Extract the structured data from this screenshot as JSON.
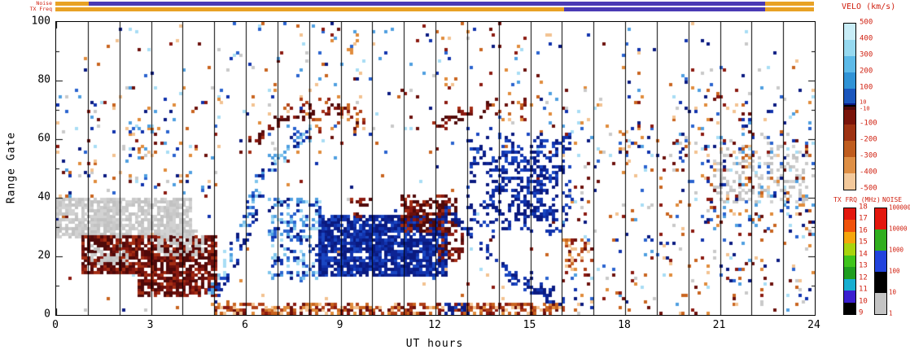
{
  "chart_data": {
    "type": "heatmap",
    "description": "Radar range-time plot of Doppler velocity backscatter (SuperDARN style RTI plot)",
    "axes": {
      "xlabel": "UT hours",
      "ylabel": "Range Gate",
      "x_range": [
        0,
        24
      ],
      "y_range": [
        0,
        100
      ],
      "x_major": [
        0,
        3,
        6,
        9,
        12,
        15,
        18,
        21,
        24
      ],
      "x_minor_step": 1,
      "y_major": [
        0,
        20,
        40,
        60,
        80,
        100
      ],
      "y_minor_step": 10,
      "grid": "vertical-hour-lines"
    },
    "strips": {
      "noise_label": "Noise",
      "tx_label": "TX Freq",
      "noise_segments": [
        {
          "from": 0,
          "to": 1.05,
          "color": "#e8a225"
        },
        {
          "from": 1.05,
          "to": 22.45,
          "color": "#4a3ab4"
        },
        {
          "from": 22.45,
          "to": 24,
          "color": "#e8a225"
        }
      ],
      "tx_segments": [
        {
          "from": 0,
          "to": 16.1,
          "color": "#e8a225"
        },
        {
          "from": 16.1,
          "to": 22.45,
          "color": "#4a3ab4"
        },
        {
          "from": 22.45,
          "to": 24,
          "color": "#e8a225"
        }
      ]
    },
    "colorbars": {
      "velo": {
        "title": "VELO (km/s)",
        "range": [
          -500,
          500
        ],
        "positive_colors": [
          "#c8edf7",
          "#96d9f0",
          "#5cbae8",
          "#2f93d6",
          "#1a56bd",
          "#0a1a86"
        ],
        "negative_colors": [
          "#500a0a",
          "#7a140a",
          "#9e3212",
          "#bf5c1e",
          "#de8f45",
          "#f3c99b"
        ],
        "tick_labels": [
          "500",
          "400",
          "300",
          "200",
          "100",
          "10",
          "-10",
          "-100",
          "-200",
          "-300",
          "-400",
          "-500"
        ]
      },
      "tx_freq": {
        "title": "TX FRQ (MHz)",
        "tick_labels": [
          "18",
          "17",
          "16",
          "15",
          "14",
          "13",
          "12",
          "11",
          "10",
          "9"
        ],
        "colors": [
          "#e3170d",
          "#f0520b",
          "#f5a60c",
          "#a8d40e",
          "#3fc41c",
          "#1f9e1f",
          "#16aed0",
          "#3a1fd0",
          "#000000"
        ]
      },
      "noise": {
        "title": "NOISE",
        "tick_labels": [
          "100000",
          "10000",
          "1000",
          "100",
          "10",
          "1"
        ],
        "colors": [
          "#e3170d",
          "#2fae1e",
          "#2143dd",
          "#000000",
          "#c4c4c4"
        ]
      }
    },
    "palettes": {
      "pos_dark": [
        "#0a1a80",
        "#0a1a80",
        "#0d2494",
        "#1133ad",
        "#1a47c2"
      ],
      "pos_mix": [
        "#0a1a80",
        "#1133ad",
        "#2a63cf",
        "#4f9fe0",
        "#7fc4ec",
        "#a8ddf4"
      ],
      "neg_dark": [
        "#500a0a",
        "#500a0a",
        "#6b100c",
        "#8b1a10",
        "#a52e14"
      ],
      "neg_mix": [
        "#6b100c",
        "#8b1a10",
        "#b04018",
        "#c9641f",
        "#e08c3c",
        "#f2c291"
      ],
      "gray": [
        "#c9c9c9",
        "#c2c2c2",
        "#d2d2d2"
      ],
      "mix": [
        "#0a1a80",
        "#1133ad",
        "#4f9fe0",
        "#a8ddf4",
        "#6b100c",
        "#8b1a10",
        "#c9641f",
        "#e08c3c",
        "#c9c9c9",
        "#f2c291",
        "#2a63cf"
      ]
    },
    "features": [
      {
        "type": "rect",
        "t": [
          0,
          24
        ],
        "g": [
          0,
          100
        ],
        "density": 0.012,
        "palette": "mix"
      },
      {
        "type": "rect",
        "t": [
          0,
          5.2
        ],
        "g": [
          40,
          78
        ],
        "density": 0.05,
        "palette": "mix"
      },
      {
        "type": "rect",
        "t": [
          5,
          16
        ],
        "g": [
          55,
          100
        ],
        "density": 0.03,
        "palette": "mix"
      },
      {
        "type": "rect",
        "t": [
          16,
          24
        ],
        "g": [
          0,
          78
        ],
        "density": 0.055,
        "palette": "mix"
      },
      {
        "type": "rect",
        "t": [
          0,
          0.5
        ],
        "g": [
          28,
          42
        ],
        "density": 0.3,
        "palette": "mix"
      },
      {
        "type": "rect",
        "t": [
          2.2,
          3.2
        ],
        "g": [
          52,
          66
        ],
        "density": 0.2,
        "palette": "mix"
      },
      {
        "type": "rect",
        "t": [
          0,
          4.3
        ],
        "g": [
          26,
          40
        ],
        "density": 0.8,
        "palette": "gray"
      },
      {
        "type": "rect",
        "t": [
          0.8,
          5.1
        ],
        "g": [
          14,
          27
        ],
        "density": 0.8,
        "palette": "neg_dark"
      },
      {
        "type": "rect",
        "t": [
          1.1,
          2.3
        ],
        "g": [
          17,
          24
        ],
        "density": 0.45,
        "palette": "gray"
      },
      {
        "type": "rect",
        "t": [
          3.3,
          4.7
        ],
        "g": [
          20,
          29
        ],
        "density": 0.5,
        "palette": "gray"
      },
      {
        "type": "rect",
        "t": [
          2.6,
          5.1
        ],
        "g": [
          6,
          14
        ],
        "density": 0.75,
        "palette": "neg_dark"
      },
      {
        "type": "rect",
        "t": [
          4.9,
          16.2
        ],
        "g": [
          0,
          4
        ],
        "density": 0.55,
        "palette": "neg_mix"
      },
      {
        "type": "rect",
        "t": [
          12.3,
          13.2
        ],
        "g": [
          0,
          4
        ],
        "density": 0.5,
        "palette": "pos_dark"
      },
      {
        "type": "path",
        "pts": [
          [
            4.85,
            6
          ],
          [
            5.3,
            14
          ],
          [
            5.8,
            28
          ],
          [
            6.3,
            42
          ],
          [
            6.9,
            52
          ],
          [
            7.6,
            60
          ],
          [
            8.3,
            63
          ]
        ],
        "thick": 9,
        "density": 0.5,
        "palette": "pos_mix"
      },
      {
        "type": "path",
        "pts": [
          [
            4.9,
            5
          ],
          [
            5.4,
            12
          ],
          [
            5.9,
            24
          ],
          [
            6.4,
            36
          ]
        ],
        "thick": 6,
        "density": 0.5,
        "palette": "pos_dark"
      },
      {
        "type": "path",
        "pts": [
          [
            6.1,
            57
          ],
          [
            6.8,
            64
          ],
          [
            7.8,
            69
          ],
          [
            8.8,
            70
          ],
          [
            9.6,
            67
          ]
        ],
        "thick": 5,
        "density": 0.45,
        "palette": "neg_dark"
      },
      {
        "type": "rect",
        "t": [
          7.2,
          9.8
        ],
        "g": [
          62,
          74
        ],
        "density": 0.1,
        "palette": "neg_mix"
      },
      {
        "type": "rect",
        "t": [
          6.7,
          8.4
        ],
        "g": [
          12,
          40
        ],
        "density": 0.38,
        "palette": "pos_mix"
      },
      {
        "type": "rect",
        "t": [
          8.3,
          12.4
        ],
        "g": [
          13,
          34
        ],
        "density": 0.85,
        "palette": "pos_dark"
      },
      {
        "type": "rect",
        "t": [
          9.3,
          10.0
        ],
        "g": [
          33,
          40
        ],
        "density": 0.3,
        "palette": "neg_dark"
      },
      {
        "type": "rect",
        "t": [
          10.9,
          12.7
        ],
        "g": [
          28,
          41
        ],
        "density": 0.5,
        "palette": "neg_dark"
      },
      {
        "type": "rect",
        "t": [
          12.1,
          12.9
        ],
        "g": [
          18,
          30
        ],
        "density": 0.4,
        "palette": "neg_dark"
      },
      {
        "type": "path",
        "pts": [
          [
            11.9,
            63
          ],
          [
            12.5,
            67
          ],
          [
            13.2,
            69
          ],
          [
            13.9,
            70
          ]
        ],
        "thick": 4,
        "density": 0.5,
        "palette": "neg_dark"
      },
      {
        "type": "rect",
        "t": [
          13.7,
          14.9
        ],
        "g": [
          66,
          74
        ],
        "density": 0.12,
        "palette": "neg_mix"
      },
      {
        "type": "path",
        "pts": [
          [
            12.3,
            36
          ],
          [
            13.0,
            28
          ],
          [
            13.7,
            20
          ],
          [
            14.4,
            13
          ],
          [
            15.3,
            7
          ],
          [
            16.1,
            4
          ]
        ],
        "thick": 6,
        "density": 0.55,
        "palette": "pos_dark"
      },
      {
        "type": "rect",
        "t": [
          13.0,
          16.3
        ],
        "g": [
          28,
          62
        ],
        "density": 0.2,
        "palette": "pos_dark"
      },
      {
        "type": "rect",
        "t": [
          13.8,
          15.9
        ],
        "g": [
          32,
          56
        ],
        "density": 0.3,
        "palette": "pos_dark"
      },
      {
        "type": "rect",
        "t": [
          16.1,
          17.0
        ],
        "g": [
          13,
          26
        ],
        "density": 0.28,
        "palette": "neg_mix"
      },
      {
        "type": "rect",
        "t": [
          20.9,
          23.9
        ],
        "g": [
          38,
          58
        ],
        "density": 0.22,
        "palette": "gray"
      },
      {
        "type": "rect",
        "t": [
          20.5,
          24
        ],
        "g": [
          30,
          62
        ],
        "density": 0.1,
        "palette": "mix"
      },
      {
        "type": "rect",
        "t": [
          21.7,
          22.2
        ],
        "g": [
          50,
          72
        ],
        "density": 0.22,
        "palette": "mix"
      },
      {
        "type": "rect",
        "t": [
          19.6,
          20.1
        ],
        "g": [
          48,
          62
        ],
        "density": 0.18,
        "palette": "mix"
      }
    ]
  }
}
